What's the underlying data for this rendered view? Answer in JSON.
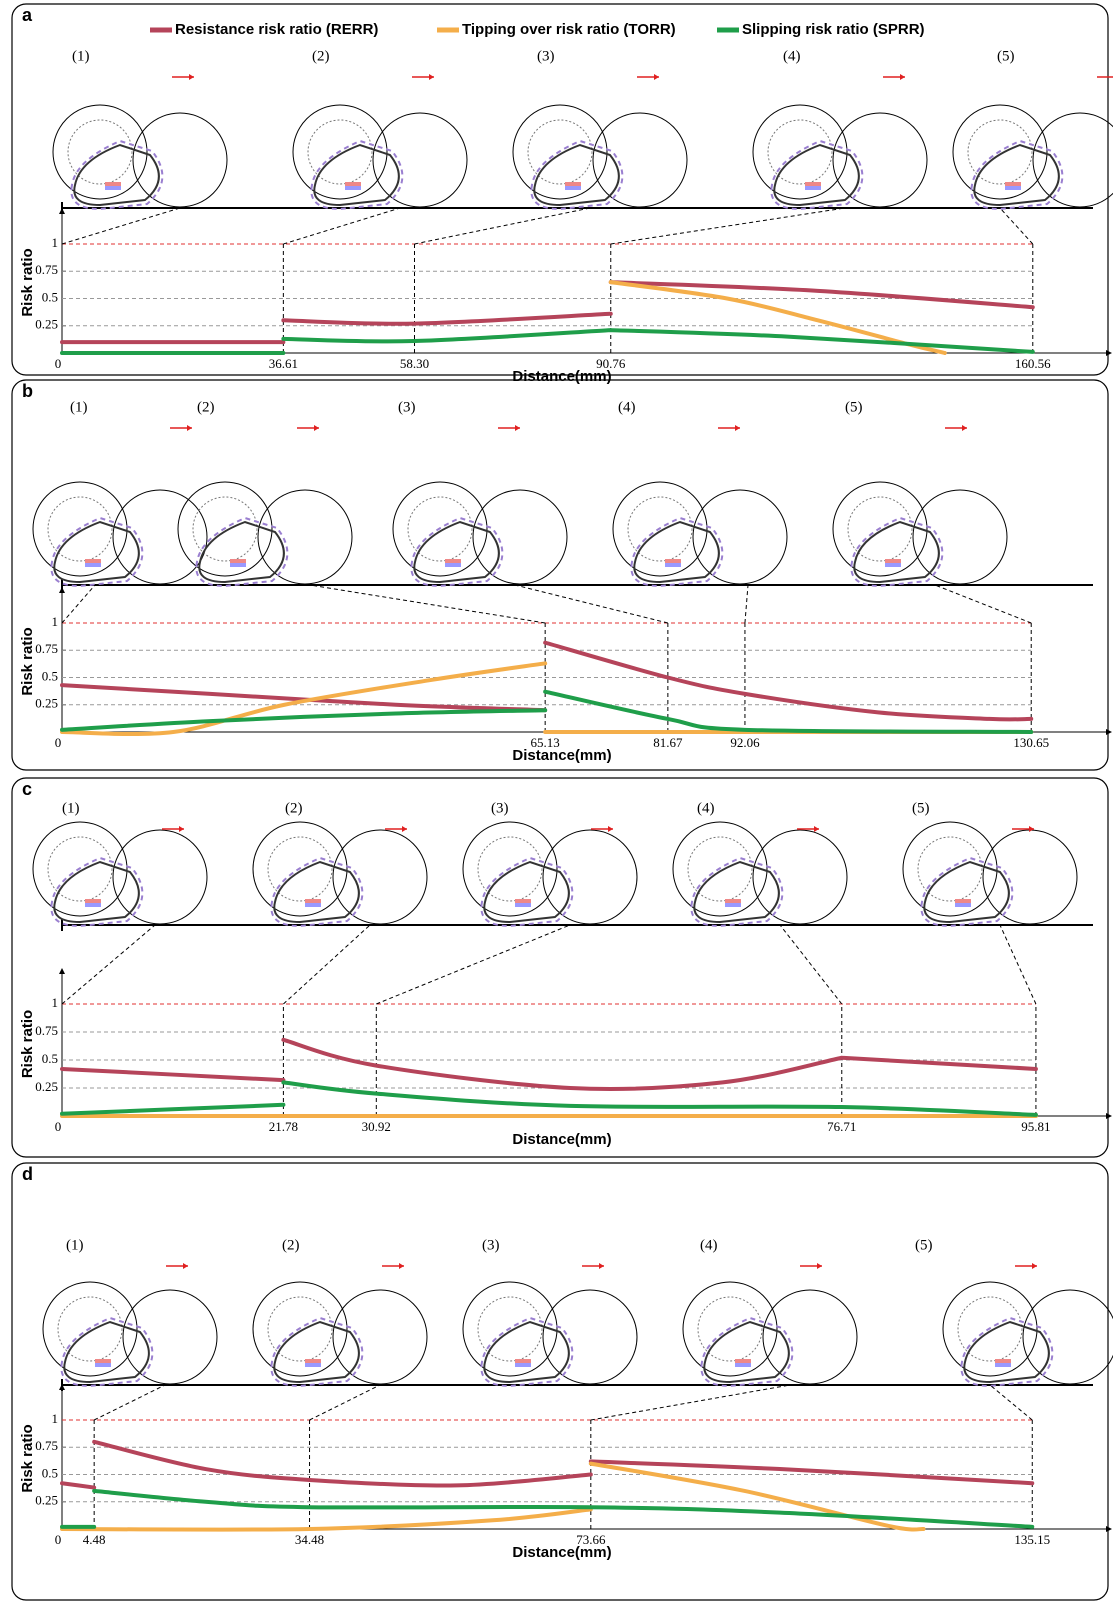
{
  "legend": {
    "series": [
      {
        "name": "Resistance risk ratio (RERR)",
        "color": "#b5445a"
      },
      {
        "name": "Tipping over risk ratio (TORR)",
        "color": "#f4ae4a"
      },
      {
        "name": "Slipping risk ratio (SPRR)",
        "color": "#1f9e4a"
      }
    ]
  },
  "chart_data": [
    {
      "type": "line",
      "panel_label": "a",
      "steps": [
        "(1)",
        "(2)",
        "(3)",
        "(4)",
        "(5)"
      ],
      "xlabel": "Distance(mm)",
      "ylabel": "Risk ratio",
      "xlim": [
        0,
        173
      ],
      "ylim": [
        0,
        1.3
      ],
      "xticks": [
        0,
        36.61,
        {
          "value": 58.3,
          "label": "58.30"
        },
        90.76,
        160.56
      ],
      "yticks": [
        0.25,
        0.5,
        0.75,
        1
      ],
      "grid": true,
      "threshold": 1,
      "threshold_color": "#e03030",
      "series": [
        {
          "color": "#b5445a",
          "x": [
            0,
            36.61,
            null,
            36.61,
            58.3,
            90.76,
            null,
            90.76,
            125,
            160.56
          ],
          "values": [
            0.1,
            0.1,
            null,
            0.3,
            0.27,
            0.36,
            null,
            0.65,
            0.57,
            0.42
          ]
        },
        {
          "color": "#f4ae4a",
          "x": [
            90.76,
            110,
            125,
            140,
            146
          ],
          "values": [
            0.65,
            0.5,
            0.3,
            0.08,
            0
          ]
        },
        {
          "color": "#1f9e4a",
          "x": [
            0,
            36.61,
            null,
            36.61,
            58.3,
            90.76,
            null,
            90.76,
            120,
            160.56
          ],
          "values": [
            0,
            0,
            null,
            0.13,
            0.11,
            0.21,
            null,
            0.21,
            0.15,
            0.01
          ]
        }
      ]
    },
    {
      "type": "line",
      "panel_label": "b",
      "steps": [
        "(1)",
        "(2)",
        "(3)",
        "(4)",
        "(5)"
      ],
      "xlabel": "Distance(mm)",
      "ylabel": "Risk ratio",
      "xlim": [
        0,
        141
      ],
      "ylim": [
        0,
        1.3
      ],
      "xticks": [
        0,
        65.13,
        81.67,
        92.06,
        130.65
      ],
      "yticks": [
        0.25,
        0.5,
        0.75,
        1
      ],
      "grid": true,
      "threshold": 1,
      "threshold_color": "#e03030",
      "series": [
        {
          "color": "#b5445a",
          "x": [
            0,
            20,
            45,
            65.13,
            null,
            65.13,
            81.67,
            92.06,
            110,
            125,
            130.65
          ],
          "values": [
            0.43,
            0.35,
            0.25,
            0.2,
            null,
            0.82,
            0.5,
            0.35,
            0.18,
            0.12,
            0.12
          ]
        },
        {
          "color": "#f4ae4a",
          "x": [
            0,
            15,
            30,
            50,
            65.13,
            null,
            65.13,
            130.65
          ],
          "values": [
            0,
            0,
            0.25,
            0.48,
            0.63,
            null,
            0,
            0
          ]
        },
        {
          "color": "#1f9e4a",
          "x": [
            0,
            20,
            45,
            65.13,
            null,
            65.13,
            81.67,
            92.06,
            130.65
          ],
          "values": [
            0.02,
            0.1,
            0.17,
            0.2,
            null,
            0.37,
            0.12,
            0.02,
            0
          ]
        }
      ]
    },
    {
      "type": "line",
      "panel_label": "c",
      "steps": [
        "(1)",
        "(2)",
        "(3)",
        "(4)",
        "(5)"
      ],
      "xlabel": "Distance(mm)",
      "ylabel": "Risk ratio",
      "xlim": [
        0,
        102.9
      ],
      "ylim": [
        0,
        1.3
      ],
      "xticks": [
        0,
        21.78,
        30.92,
        76.71,
        95.81
      ],
      "yticks": [
        0.25,
        0.5,
        0.75,
        1
      ],
      "grid": true,
      "threshold": 1,
      "threshold_color": "#e03030",
      "series": [
        {
          "color": "#b5445a",
          "x": [
            0,
            21.78,
            null,
            21.78,
            30.92,
            50,
            65,
            76.71,
            null,
            76.71,
            95.81
          ],
          "values": [
            0.42,
            0.32,
            null,
            0.68,
            0.45,
            0.25,
            0.3,
            0.52,
            null,
            0.52,
            0.42
          ]
        },
        {
          "color": "#f4ae4a",
          "x": [
            0,
            95.81
          ],
          "values": [
            0,
            0
          ]
        },
        {
          "color": "#1f9e4a",
          "x": [
            0,
            21.78,
            null,
            21.78,
            30.92,
            50,
            76.71,
            95.81
          ],
          "values": [
            0.02,
            0.1,
            null,
            0.3,
            0.2,
            0.09,
            0.08,
            0.01
          ]
        }
      ]
    },
    {
      "type": "line",
      "panel_label": "d",
      "steps": [
        "(1)",
        "(2)",
        "(3)",
        "(4)",
        "(5)"
      ],
      "xlabel": "Distance(mm)",
      "ylabel": "Risk ratio",
      "xlim": [
        0,
        145.7
      ],
      "ylim": [
        0,
        1.3
      ],
      "xticks": [
        0,
        4.48,
        34.48,
        73.66,
        135.15
      ],
      "yticks": [
        0.25,
        0.5,
        0.75,
        1
      ],
      "grid": true,
      "threshold": 1,
      "threshold_color": "#e03030",
      "series": [
        {
          "color": "#b5445a",
          "x": [
            0,
            4.48,
            null,
            4.48,
            20,
            34.48,
            55,
            73.66,
            null,
            73.66,
            100,
            135.15
          ],
          "values": [
            0.42,
            0.38,
            null,
            0.8,
            0.55,
            0.45,
            0.4,
            0.5,
            null,
            0.62,
            0.55,
            0.42
          ]
        },
        {
          "color": "#f4ae4a",
          "x": [
            0,
            34.48,
            60,
            73.66,
            null,
            73.66,
            95,
            115,
            120
          ],
          "values": [
            0,
            0,
            0.08,
            0.18,
            null,
            0.6,
            0.35,
            0.03,
            0
          ]
        },
        {
          "color": "#1f9e4a",
          "x": [
            0,
            4.48,
            null,
            4.48,
            20,
            34.48,
            73.66,
            100,
            135.15
          ],
          "values": [
            0.02,
            0.02,
            null,
            0.35,
            0.25,
            0.2,
            0.2,
            0.15,
            0.02
          ]
        }
      ]
    }
  ]
}
